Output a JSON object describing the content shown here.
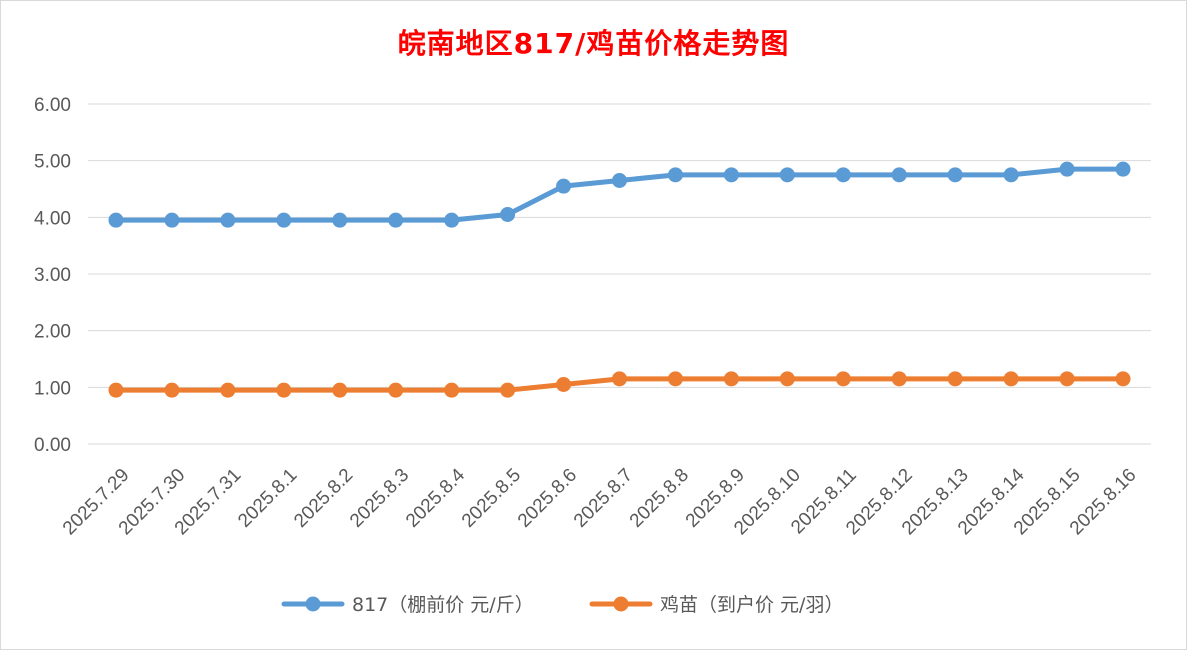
{
  "chart_data": {
    "type": "line",
    "title": "皖南地区817/鸡苗价格走势图",
    "title_color": "#ff0000",
    "xlabel": "",
    "ylabel": "",
    "ylim": [
      0,
      6
    ],
    "y_ticks": [
      "0.00",
      "1.00",
      "2.00",
      "3.00",
      "4.00",
      "5.00",
      "6.00"
    ],
    "grid": true,
    "legend_position": "bottom",
    "categories": [
      "2025.7.29",
      "2025.7.30",
      "2025.7.31",
      "2025.8.1",
      "2025.8.2",
      "2025.8.3",
      "2025.8.4",
      "2025.8.5",
      "2025.8.6",
      "2025.8.7",
      "2025.8.8",
      "2025.8.9",
      "2025.8.10",
      "2025.8.11",
      "2025.8.12",
      "2025.8.13",
      "2025.8.14",
      "2025.8.15",
      "2025.8.16"
    ],
    "series": [
      {
        "name": "817（棚前价 元/斤）",
        "color": "#5b9bd5",
        "values": [
          3.95,
          3.95,
          3.95,
          3.95,
          3.95,
          3.95,
          3.95,
          4.05,
          4.55,
          4.65,
          4.75,
          4.75,
          4.75,
          4.75,
          4.75,
          4.75,
          4.75,
          4.85,
          4.85
        ]
      },
      {
        "name": "鸡苗（到户价 元/羽）",
        "color": "#ed7d31",
        "values": [
          0.95,
          0.95,
          0.95,
          0.95,
          0.95,
          0.95,
          0.95,
          0.95,
          1.05,
          1.15,
          1.15,
          1.15,
          1.15,
          1.15,
          1.15,
          1.15,
          1.15,
          1.15,
          1.15
        ]
      }
    ]
  }
}
